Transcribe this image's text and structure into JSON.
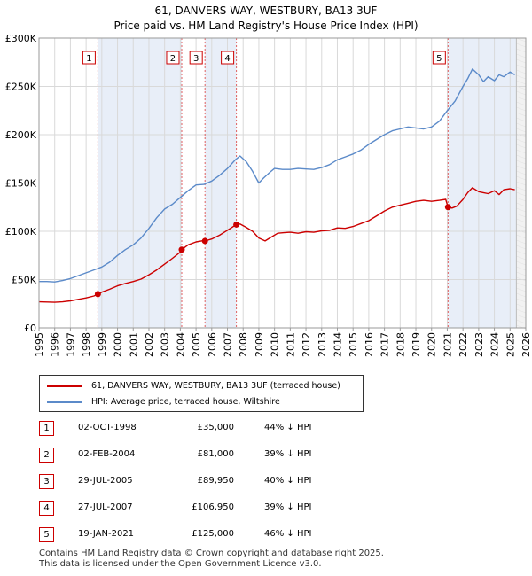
{
  "chart_data": {
    "type": "line",
    "title": "61, DANVERS WAY, WESTBURY, BA13 3UF",
    "subtitle": "Price paid vs. HM Land Registry's House Price Index (HPI)",
    "xlabel": "",
    "ylabel": "",
    "xlim": [
      1995,
      2026
    ],
    "ylim": [
      0,
      300000
    ],
    "x_ticks": [
      "1995",
      "1996",
      "1997",
      "1998",
      "1999",
      "2000",
      "2001",
      "2002",
      "2003",
      "2004",
      "2005",
      "2006",
      "2007",
      "2008",
      "2009",
      "2010",
      "2011",
      "2012",
      "2013",
      "2014",
      "2015",
      "2016",
      "2017",
      "2018",
      "2019",
      "2020",
      "2021",
      "2022",
      "2023",
      "2024",
      "2025",
      "2026"
    ],
    "y_ticks": [
      {
        "value": 0,
        "label": "£0"
      },
      {
        "value": 50000,
        "label": "£50K"
      },
      {
        "value": 100000,
        "label": "£100K"
      },
      {
        "value": 150000,
        "label": "£150K"
      },
      {
        "value": 200000,
        "label": "£200K"
      },
      {
        "value": 250000,
        "label": "£250K"
      },
      {
        "value": 300000,
        "label": "£300K"
      }
    ],
    "grid": true,
    "future_region_start": 2025.4,
    "shaded_periods": [
      [
        1998.75,
        2004.09
      ],
      [
        2005.57,
        2007.57
      ],
      [
        2021.05,
        2025.4
      ]
    ],
    "series": [
      {
        "name": "61, DANVERS WAY, WESTBURY, BA13 3UF (terraced house)",
        "color": "#cc0000",
        "x": [
          1995.0,
          1995.5,
          1996.0,
          1996.5,
          1997.0,
          1997.5,
          1998.0,
          1998.5,
          1998.75,
          1999.0,
          1999.5,
          2000.0,
          2000.5,
          2001.0,
          2001.5,
          2002.0,
          2002.5,
          2003.0,
          2003.5,
          2004.0,
          2004.09,
          2004.5,
          2005.0,
          2005.5,
          2005.57,
          2006.0,
          2006.5,
          2007.0,
          2007.57,
          2007.8,
          2008.2,
          2008.6,
          2009.0,
          2009.4,
          2009.8,
          2010.2,
          2010.6,
          2011.0,
          2011.5,
          2012.0,
          2012.5,
          2013.0,
          2013.5,
          2014.0,
          2014.5,
          2015.0,
          2015.5,
          2016.0,
          2016.5,
          2017.0,
          2017.5,
          2018.0,
          2018.5,
          2019.0,
          2019.5,
          2020.0,
          2020.5,
          2020.9,
          2021.05,
          2021.3,
          2021.6,
          2022.0,
          2022.3,
          2022.6,
          2023.0,
          2023.3,
          2023.6,
          2024.0,
          2024.3,
          2024.6,
          2025.0,
          2025.3
        ],
        "values": [
          27000,
          26800,
          26500,
          27000,
          28000,
          29500,
          31000,
          33000,
          35000,
          37000,
          40000,
          43500,
          46000,
          48000,
          50500,
          55000,
          60000,
          66000,
          72000,
          78500,
          81000,
          86000,
          89000,
          90500,
          89950,
          92000,
          96000,
          101000,
          106950,
          107500,
          104000,
          100000,
          93000,
          90000,
          94000,
          98000,
          98500,
          99000,
          98000,
          99500,
          99000,
          100500,
          101000,
          103500,
          103000,
          105000,
          108000,
          111000,
          116000,
          121000,
          125000,
          127000,
          129000,
          131000,
          132000,
          131000,
          132000,
          133000,
          125000,
          124000,
          126000,
          133000,
          140000,
          145000,
          141000,
          140000,
          139000,
          142000,
          138000,
          143000,
          144000,
          143000
        ]
      },
      {
        "name": "HPI: Average price, terraced house, Wiltshire",
        "color": "#5b8ac9",
        "x": [
          1995.0,
          1995.5,
          1996.0,
          1996.5,
          1997.0,
          1997.5,
          1998.0,
          1998.5,
          1999.0,
          1999.5,
          2000.0,
          2000.5,
          2001.0,
          2001.5,
          2002.0,
          2002.5,
          2003.0,
          2003.5,
          2004.0,
          2004.5,
          2005.0,
          2005.5,
          2006.0,
          2006.5,
          2007.0,
          2007.5,
          2007.8,
          2008.2,
          2008.6,
          2009.0,
          2009.3,
          2009.7,
          2010.0,
          2010.5,
          2011.0,
          2011.5,
          2012.0,
          2012.5,
          2013.0,
          2013.5,
          2014.0,
          2014.5,
          2015.0,
          2015.5,
          2016.0,
          2016.5,
          2017.0,
          2017.5,
          2018.0,
          2018.5,
          2019.0,
          2019.5,
          2020.0,
          2020.5,
          2021.0,
          2021.5,
          2022.0,
          2022.3,
          2022.6,
          2023.0,
          2023.3,
          2023.6,
          2024.0,
          2024.3,
          2024.6,
          2025.0,
          2025.3
        ],
        "values": [
          48000,
          48000,
          47500,
          49000,
          51000,
          54000,
          57000,
          60000,
          63000,
          68000,
          75000,
          81000,
          86000,
          93000,
          103000,
          114000,
          123000,
          128000,
          135000,
          142000,
          148000,
          148500,
          152000,
          158000,
          165000,
          174000,
          178000,
          172000,
          162000,
          150000,
          155000,
          161000,
          165000,
          164000,
          164000,
          165000,
          164500,
          164000,
          166000,
          169000,
          174000,
          177000,
          180000,
          184000,
          190000,
          195000,
          200000,
          204000,
          206000,
          208000,
          207000,
          206000,
          208000,
          214000,
          225000,
          235000,
          250000,
          258000,
          268000,
          262000,
          255000,
          260000,
          256000,
          262000,
          260000,
          265000,
          262000
        ]
      }
    ],
    "sales_markers": [
      {
        "n": "1",
        "x": 1998.75,
        "value": 35000
      },
      {
        "n": "2",
        "x": 2004.09,
        "value": 81000
      },
      {
        "n": "3",
        "x": 2005.57,
        "value": 89950
      },
      {
        "n": "4",
        "x": 2007.57,
        "value": 106950
      },
      {
        "n": "5",
        "x": 2021.05,
        "value": 125000
      }
    ]
  },
  "legend": {
    "property_label": "61, DANVERS WAY, WESTBURY, BA13 3UF (terraced house)",
    "hpi_label": "HPI: Average price, terraced house, Wiltshire"
  },
  "sales": [
    {
      "n": "1",
      "date": "02-OCT-1998",
      "price": "£35,000",
      "delta": "44% ↓ HPI"
    },
    {
      "n": "2",
      "date": "02-FEB-2004",
      "price": "£81,000",
      "delta": "39% ↓ HPI"
    },
    {
      "n": "3",
      "date": "29-JUL-2005",
      "price": "£89,950",
      "delta": "40% ↓ HPI"
    },
    {
      "n": "4",
      "date": "27-JUL-2007",
      "price": "£106,950",
      "delta": "39% ↓ HPI"
    },
    {
      "n": "5",
      "date": "19-JAN-2021",
      "price": "£125,000",
      "delta": "46% ↓ HPI"
    }
  ],
  "footer": {
    "line1": "Contains HM Land Registry data © Crown copyright and database right 2025.",
    "line2": "This data is licensed under the Open Government Licence v3.0."
  },
  "colors": {
    "property": "#cc0000",
    "hpi": "#5b8ac9",
    "shade": "#e8eef8",
    "future": "#f2f2f2"
  }
}
